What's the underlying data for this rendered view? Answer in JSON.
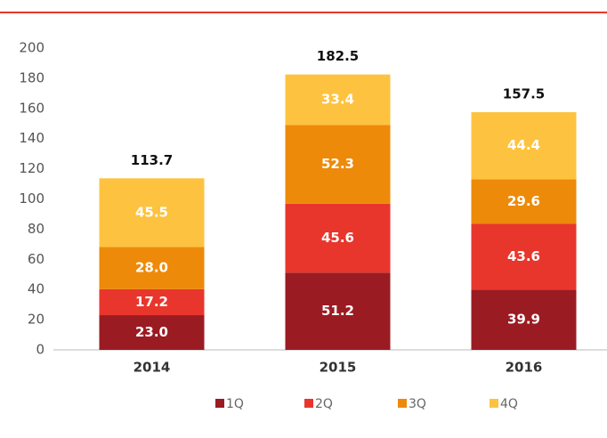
{
  "chart_data": {
    "type": "stacked_bar",
    "categories": [
      "2014",
      "2015",
      "2016"
    ],
    "series": [
      {
        "name": "1Q",
        "color": "#9b1b22",
        "values": [
          23.0,
          51.2,
          39.9
        ],
        "value_labels": [
          "23.0",
          "51.2",
          "39.9"
        ]
      },
      {
        "name": "2Q",
        "color": "#e8362d",
        "values": [
          17.2,
          45.6,
          43.6
        ],
        "value_labels": [
          "17.2",
          "45.6",
          "43.6"
        ]
      },
      {
        "name": "3Q",
        "color": "#ee8a0a",
        "values": [
          28.0,
          52.3,
          29.6
        ],
        "value_labels": [
          "28.0",
          "52.3",
          "29.6"
        ]
      },
      {
        "name": "4Q",
        "color": "#fdc340",
        "values": [
          45.5,
          33.4,
          44.4
        ],
        "value_labels": [
          "45.5",
          "33.4",
          "44.4"
        ]
      }
    ],
    "totals": [
      113.7,
      182.5,
      157.5
    ],
    "ylim": [
      0,
      200
    ],
    "yticks": [
      0,
      20,
      40,
      60,
      80,
      100,
      120,
      140,
      160,
      180,
      200
    ],
    "legend": "bottom"
  }
}
